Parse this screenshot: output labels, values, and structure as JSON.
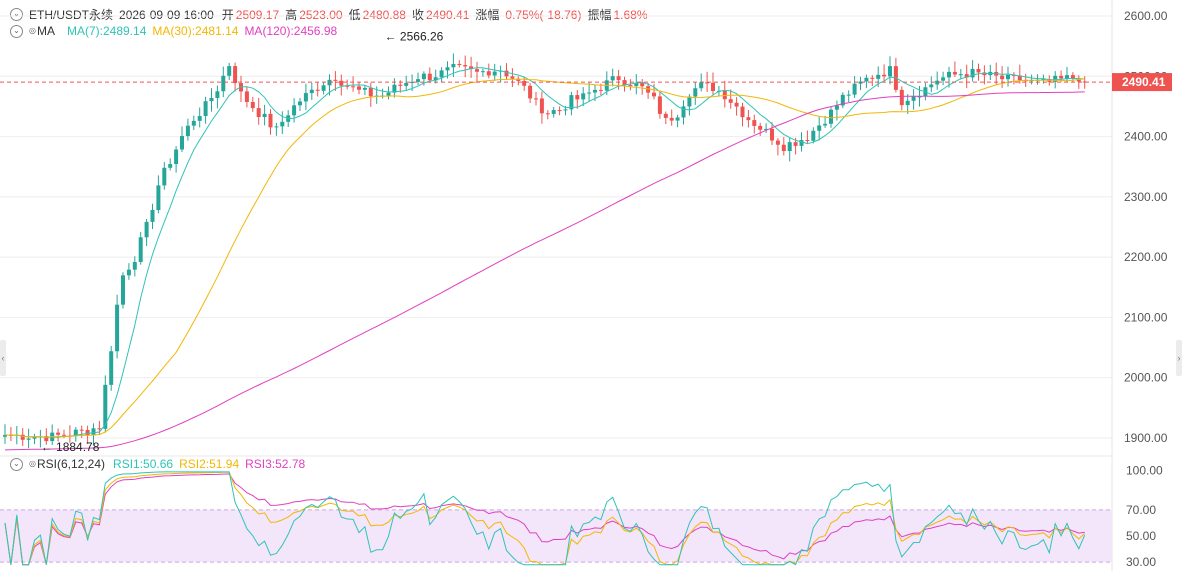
{
  "header": {
    "symbol": "ETH/USDT永续",
    "time": "2026-09-09 16:00",
    "open_label": "开",
    "open": "2509.17",
    "high_label": "高",
    "high": "2523.00",
    "low_label": "低",
    "low": "2480.88",
    "close_label": "收",
    "close": "2490.41",
    "change_label": "涨幅",
    "change": "-0.75%(-18.76)",
    "amp_label": "振幅",
    "amp": "1.68%"
  },
  "ma_legend": {
    "label": "MA",
    "ma7": "MA(7):2489.14",
    "ma30": "MA(30):2481.14",
    "ma120": "MA(120):2456.98"
  },
  "rsi_legend": {
    "label": "RSI(6,12,24)",
    "rsi1": "RSI1:50.66",
    "rsi2": "RSI2:51.94",
    "rsi3": "RSI3:52.78"
  },
  "colors": {
    "up": "#26a69a",
    "down": "#ef5350",
    "ma7": "#2ec4b6",
    "ma30": "#f2b705",
    "ma120": "#e040c0",
    "rsi1": "#2ec4b6",
    "rsi2": "#f2b705",
    "rsi3": "#e040c0",
    "price_tag": "#ef5350"
  },
  "chart_data": [
    {
      "type": "candlestick",
      "y_ticks": [
        "2600.00",
        "2500.00",
        "2400.00",
        "2300.00",
        "2200.00",
        "2100.00",
        "2000.00",
        "1900.00"
      ],
      "ylim": [
        1880,
        2610
      ],
      "last_price": "2490.41",
      "max_label": "2566.26",
      "min_label": "1884.78",
      "max_value": 2566.26,
      "min_value": 1884.78,
      "anchors": [
        [
          0,
          1905
        ],
        [
          8,
          1902
        ],
        [
          14,
          1912
        ],
        [
          16,
          1920
        ],
        [
          17,
          1985
        ],
        [
          18,
          2050
        ],
        [
          19,
          2120
        ],
        [
          20,
          2170
        ],
        [
          22,
          2200
        ],
        [
          24,
          2250
        ],
        [
          26,
          2320
        ],
        [
          28,
          2360
        ],
        [
          30,
          2400
        ],
        [
          32,
          2430
        ],
        [
          34,
          2450
        ],
        [
          36,
          2480
        ],
        [
          38,
          2520
        ],
        [
          40,
          2470
        ],
        [
          42,
          2450
        ],
        [
          44,
          2430
        ],
        [
          46,
          2410
        ],
        [
          48,
          2440
        ],
        [
          50,
          2460
        ],
        [
          52,
          2475
        ],
        [
          54,
          2490
        ],
        [
          56,
          2500
        ],
        [
          58,
          2485
        ],
        [
          60,
          2475
        ],
        [
          62,
          2470
        ],
        [
          64,
          2468
        ],
        [
          66,
          2480
        ],
        [
          68,
          2490
        ],
        [
          70,
          2500
        ],
        [
          72,
          2500
        ],
        [
          74,
          2505
        ],
        [
          76,
          2512
        ],
        [
          78,
          2510
        ],
        [
          80,
          2505
        ],
        [
          82,
          2510
        ],
        [
          84,
          2512
        ],
        [
          86,
          2498
        ],
        [
          88,
          2480
        ],
        [
          90,
          2455
        ],
        [
          92,
          2440
        ],
        [
          94,
          2445
        ],
        [
          96,
          2460
        ],
        [
          98,
          2465
        ],
        [
          100,
          2478
        ],
        [
          102,
          2488
        ],
        [
          104,
          2498
        ],
        [
          106,
          2490
        ],
        [
          108,
          2480
        ],
        [
          110,
          2460
        ],
        [
          112,
          2425
        ],
        [
          114,
          2440
        ],
        [
          116,
          2475
        ],
        [
          118,
          2484
        ],
        [
          120,
          2482
        ],
        [
          122,
          2470
        ],
        [
          124,
          2450
        ],
        [
          126,
          2430
        ],
        [
          128,
          2415
        ],
        [
          130,
          2400
        ],
        [
          132,
          2385
        ],
        [
          134,
          2392
        ],
        [
          136,
          2400
        ],
        [
          138,
          2420
        ],
        [
          140,
          2440
        ],
        [
          142,
          2465
        ],
        [
          144,
          2480
        ],
        [
          146,
          2495
        ],
        [
          148,
          2505
        ],
        [
          150,
          2510
        ],
        [
          152,
          2460
        ],
        [
          154,
          2470
        ],
        [
          156,
          2480
        ],
        [
          158,
          2495
        ],
        [
          160,
          2500
        ],
        [
          162,
          2505
        ],
        [
          164,
          2505
        ],
        [
          166,
          2502
        ],
        [
          168,
          2498
        ],
        [
          170,
          2494
        ],
        [
          172,
          2495
        ],
        [
          174,
          2490
        ],
        [
          176,
          2488
        ],
        [
          178,
          2492
        ],
        [
          180,
          2496
        ],
        [
          182,
          2499
        ],
        [
          183,
          2490.41
        ]
      ],
      "ma7_last": 2489.14,
      "ma30_last": 2481.14,
      "ma120_last": 2456.98
    },
    {
      "type": "line",
      "title": "RSI(6,12,24)",
      "y_ticks": [
        "100.00",
        "70.00",
        "50.00",
        "30.00"
      ],
      "ylim": [
        27,
        102
      ],
      "overbought": 70,
      "oversold": 30,
      "series": [
        {
          "name": "RSI1",
          "last": 50.66
        },
        {
          "name": "RSI2",
          "last": 51.94
        },
        {
          "name": "RSI3",
          "last": 52.78
        }
      ]
    }
  ]
}
